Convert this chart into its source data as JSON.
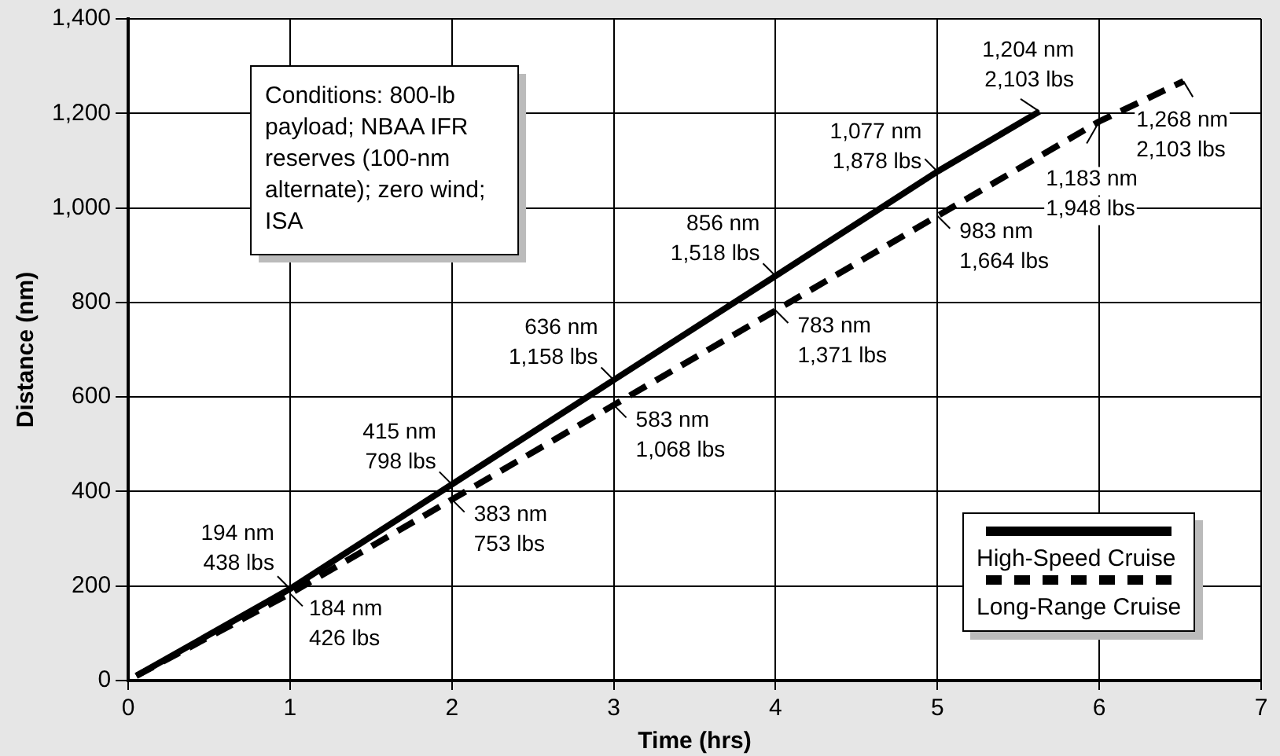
{
  "chart_data": {
    "type": "line",
    "xlabel": "Time (hrs)",
    "ylabel": "Distance (nm)",
    "xlim": [
      0,
      7
    ],
    "xticks": [
      0,
      1,
      2,
      3,
      4,
      5,
      6,
      7
    ],
    "ylim": [
      0,
      1400
    ],
    "yticks": [
      0,
      200,
      400,
      600,
      800,
      {
        "value": 1000,
        "label": "1,000"
      },
      {
        "value": 1200,
        "label": "1,200"
      },
      {
        "value": 1400,
        "label": "1,400"
      }
    ],
    "grid": true,
    "legend": "bottom right",
    "marker": "none",
    "series": [
      {
        "name": "High-Speed Cruise",
        "color": "#000000",
        "line_style": "solid",
        "x": [
          0.05,
          1,
          2,
          3,
          4,
          5,
          5.63
        ],
        "values": [
          10,
          194,
          415,
          636,
          856,
          1077,
          1204
        ]
      },
      {
        "name": "Long-Range Cruise",
        "color": "#000000",
        "line_style": "dashed",
        "x": [
          0.05,
          1,
          2,
          3,
          4,
          5,
          6,
          6.52
        ],
        "values": [
          10,
          184,
          383,
          583,
          783,
          983,
          1183,
          1268
        ]
      }
    ],
    "annotations": [
      "Conditions: 800-lb payload; NBAA IFR reserves (100-nm alternate); zero wind; ISA",
      {
        "text": "194 nm\n438 lbs",
        "x": 1,
        "y": 194
      },
      {
        "text": "415 nm\n798 lbs",
        "x": 2,
        "y": 415
      },
      {
        "text": "636 nm\n1,158 lbs",
        "x": 3,
        "y": 636
      },
      {
        "text": "856 nm\n1,518 lbs",
        "x": 4,
        "y": 856
      },
      {
        "text": "1,077 nm\n1,878 lbs",
        "x": 5,
        "y": 1077
      },
      {
        "text": "1,204 nm\n2,103 lbs",
        "x": 5.63,
        "y": 1204
      },
      {
        "text": "184 nm\n426 lbs",
        "x": 1,
        "y": 184
      },
      {
        "text": "383 nm\n753 lbs",
        "x": 2,
        "y": 383
      },
      {
        "text": "583 nm\n1,068 lbs",
        "x": 3,
        "y": 583
      },
      {
        "text": "783 nm\n1,371 lbs",
        "x": 4,
        "y": 783
      },
      {
        "text": "983 nm\n1,664 lbs",
        "x": 5,
        "y": 983
      },
      {
        "text": "1,183 nm\n1,948 lbs",
        "x": 6,
        "y": 1183
      },
      {
        "text": "1,268 nm\n2,103 lbs",
        "x": 6.52,
        "y": 1268
      }
    ]
  }
}
